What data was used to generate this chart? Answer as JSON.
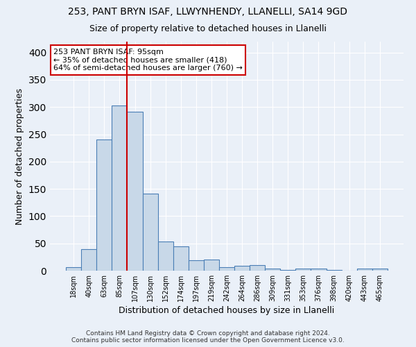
{
  "title1": "253, PANT BRYN ISAF, LLWYNHENDY, LLANELLI, SA14 9GD",
  "title2": "Size of property relative to detached houses in Llanelli",
  "xlabel": "Distribution of detached houses by size in Llanelli",
  "ylabel": "Number of detached properties",
  "footnote1": "Contains HM Land Registry data © Crown copyright and database right 2024.",
  "footnote2": "Contains public sector information licensed under the Open Government Licence v3.0.",
  "bar_labels": [
    "18sqm",
    "40sqm",
    "63sqm",
    "85sqm",
    "107sqm",
    "130sqm",
    "152sqm",
    "174sqm",
    "197sqm",
    "219sqm",
    "242sqm",
    "264sqm",
    "286sqm",
    "309sqm",
    "331sqm",
    "353sqm",
    "376sqm",
    "398sqm",
    "420sqm",
    "443sqm",
    "465sqm"
  ],
  "bar_values": [
    7,
    39,
    241,
    303,
    291,
    141,
    54,
    44,
    19,
    21,
    7,
    9,
    10,
    4,
    1,
    4,
    4,
    1,
    0,
    4,
    4
  ],
  "bar_color": "#c8d8e8",
  "bar_edge_color": "#4a7eb5",
  "vline_x": 3.5,
  "annotation_line1": "253 PANT BRYN ISAF: 95sqm",
  "annotation_line2": "← 35% of detached houses are smaller (418)",
  "annotation_line3": "64% of semi-detached houses are larger (760) →",
  "box_color": "#ffffff",
  "box_edge_color": "#cc0000",
  "vline_color": "#cc0000",
  "ylim": [
    0,
    420
  ],
  "yticks": [
    0,
    50,
    100,
    150,
    200,
    250,
    300,
    350,
    400
  ],
  "background_color": "#eaf0f8",
  "grid_color": "#ffffff",
  "title1_fontsize": 10,
  "title2_fontsize": 9,
  "ylabel_fontsize": 9,
  "xlabel_fontsize": 9,
  "footnote_fontsize": 6.5,
  "annotation_fontsize": 8,
  "tick_fontsize": 7
}
